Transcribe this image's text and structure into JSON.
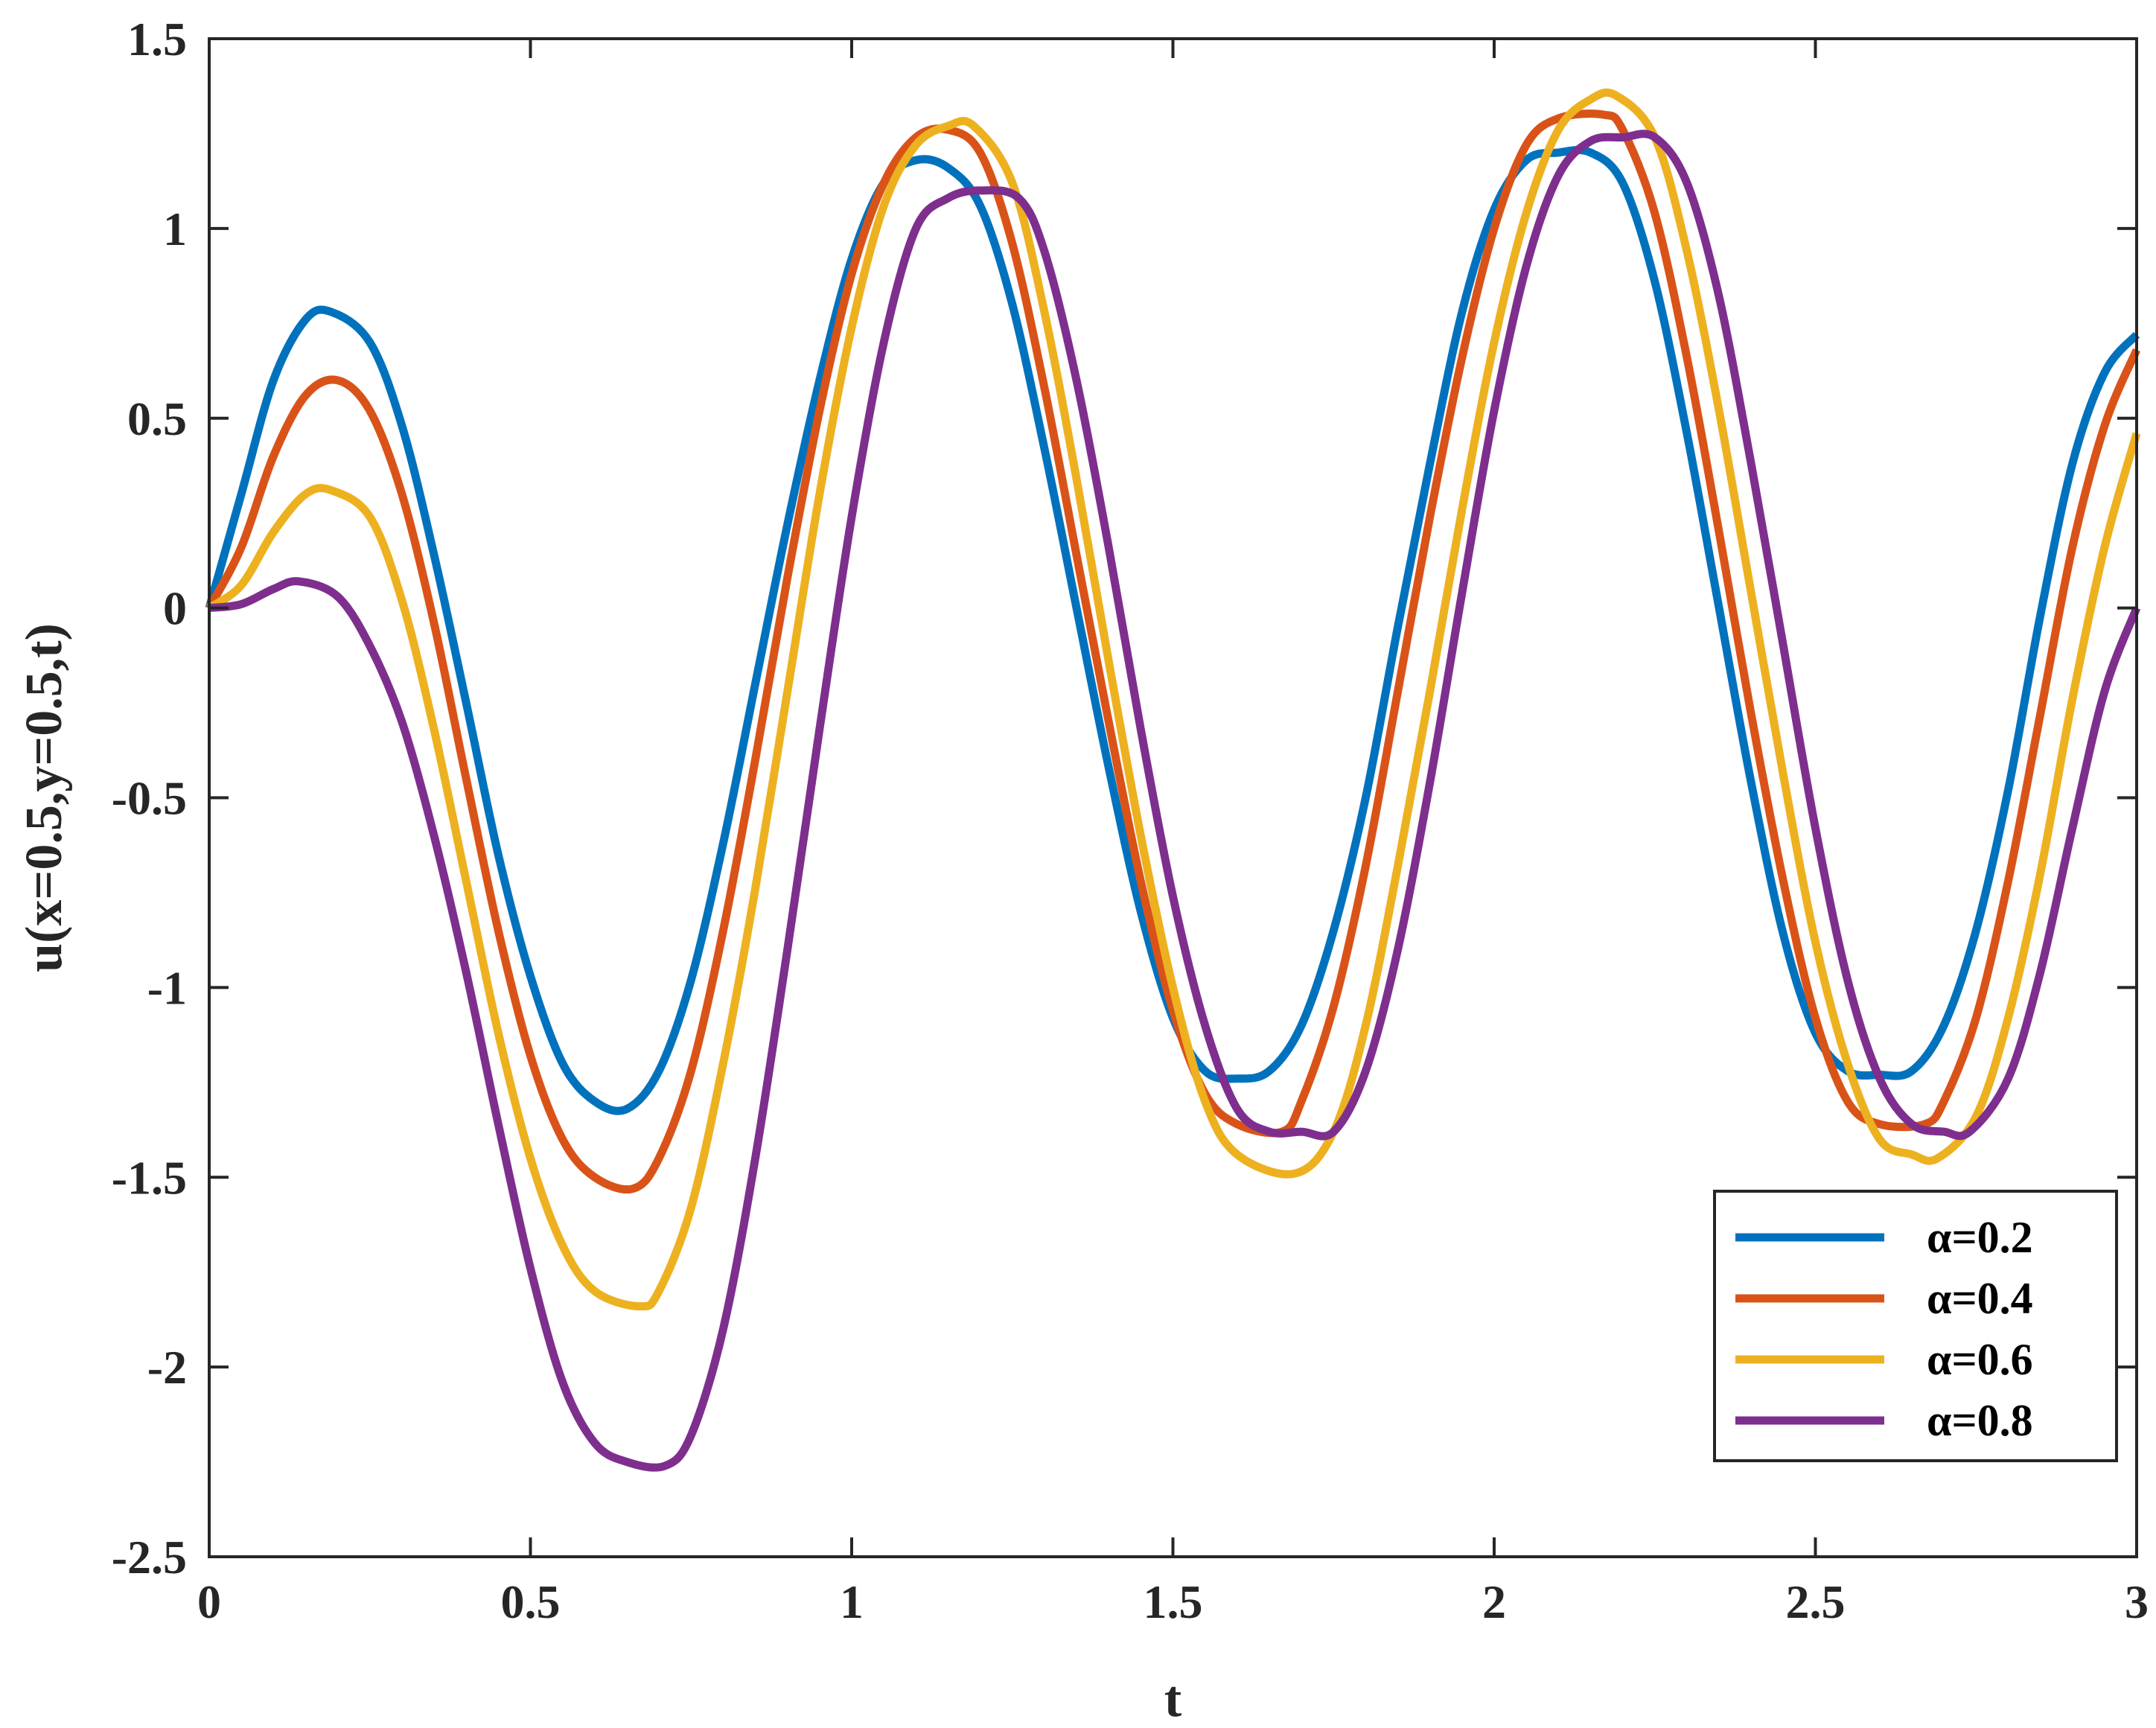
{
  "chart_data": {
    "type": "line",
    "title": "",
    "xlabel": "t",
    "ylabel": "u(x=0.5,y=0.5,t)",
    "xlim": [
      0,
      3
    ],
    "ylim": [
      -2.5,
      1.5
    ],
    "xticks": [
      0,
      0.5,
      1,
      1.5,
      2,
      2.5,
      3
    ],
    "xtick_labels": [
      "0",
      "0.5",
      "1",
      "1.5",
      "2",
      "2.5",
      "3"
    ],
    "yticks": [
      1.5,
      1,
      0.5,
      0,
      -0.5,
      -1,
      -1.5,
      -2,
      -2.5
    ],
    "ytick_labels": [
      "1.5",
      "1",
      "0.5",
      "0",
      "-0.5",
      "-1",
      "-1.5",
      "-2",
      "-2.5"
    ],
    "grid": false,
    "legend_position": "bottom-right",
    "series": [
      {
        "name": "α=0.2",
        "color": "#0072BD",
        "x": [
          0,
          0.05,
          0.1,
          0.15,
          0.19,
          0.25,
          0.3,
          0.35,
          0.4,
          0.45,
          0.5,
          0.55,
          0.6,
          0.65,
          0.7,
          0.75,
          0.8,
          0.85,
          0.9,
          0.95,
          1.0,
          1.05,
          1.1,
          1.15,
          1.2,
          1.25,
          1.3,
          1.35,
          1.4,
          1.45,
          1.5,
          1.55,
          1.6,
          1.65,
          1.7,
          1.75,
          1.8,
          1.85,
          1.9,
          1.95,
          2.0,
          2.05,
          2.1,
          2.15,
          2.2,
          2.25,
          2.3,
          2.35,
          2.4,
          2.45,
          2.5,
          2.55,
          2.6,
          2.65,
          2.7,
          2.75,
          2.8,
          2.85,
          2.9,
          2.95,
          3.0
        ],
        "y": [
          0,
          0.3,
          0.6,
          0.76,
          0.78,
          0.7,
          0.48,
          0.14,
          -0.25,
          -0.65,
          -0.97,
          -1.2,
          -1.3,
          -1.32,
          -1.22,
          -0.98,
          -0.62,
          -0.2,
          0.22,
          0.6,
          0.92,
          1.12,
          1.18,
          1.16,
          1.06,
          0.8,
          0.42,
          0.0,
          -0.42,
          -0.8,
          -1.08,
          -1.22,
          -1.24,
          -1.22,
          -1.1,
          -0.85,
          -0.5,
          -0.05,
          0.38,
          0.78,
          1.05,
          1.18,
          1.2,
          1.2,
          1.12,
          0.86,
          0.46,
          0.0,
          -0.46,
          -0.86,
          -1.12,
          -1.22,
          -1.23,
          -1.22,
          -1.1,
          -0.85,
          -0.48,
          -0.02,
          0.38,
          0.62,
          0.72
        ]
      },
      {
        "name": "α=0.4",
        "color": "#D95319",
        "x": [
          0,
          0.05,
          0.1,
          0.15,
          0.2,
          0.25,
          0.3,
          0.35,
          0.4,
          0.45,
          0.5,
          0.55,
          0.6,
          0.66,
          0.7,
          0.75,
          0.8,
          0.85,
          0.9,
          0.95,
          1.0,
          1.05,
          1.1,
          1.15,
          1.2,
          1.25,
          1.3,
          1.35,
          1.4,
          1.45,
          1.5,
          1.55,
          1.6,
          1.67,
          1.7,
          1.75,
          1.8,
          1.85,
          1.9,
          1.95,
          2.0,
          2.05,
          2.1,
          2.17,
          2.2,
          2.25,
          2.3,
          2.35,
          2.4,
          2.45,
          2.5,
          2.55,
          2.6,
          2.67,
          2.7,
          2.75,
          2.8,
          2.85,
          2.9,
          2.95,
          3.0
        ],
        "y": [
          0,
          0.16,
          0.4,
          0.56,
          0.6,
          0.52,
          0.3,
          -0.04,
          -0.45,
          -0.85,
          -1.18,
          -1.4,
          -1.5,
          -1.53,
          -1.45,
          -1.22,
          -0.85,
          -0.4,
          0.08,
          0.52,
          0.88,
          1.12,
          1.24,
          1.26,
          1.2,
          0.96,
          0.58,
          0.14,
          -0.3,
          -0.72,
          -1.06,
          -1.28,
          -1.36,
          -1.38,
          -1.3,
          -1.05,
          -0.68,
          -0.22,
          0.24,
          0.66,
          1.0,
          1.22,
          1.29,
          1.3,
          1.26,
          1.04,
          0.66,
          0.2,
          -0.28,
          -0.72,
          -1.08,
          -1.3,
          -1.36,
          -1.36,
          -1.3,
          -1.08,
          -0.72,
          -0.28,
          0.16,
          0.48,
          0.68
        ]
      },
      {
        "name": "α=0.6",
        "color": "#EDB120",
        "x": [
          0,
          0.05,
          0.1,
          0.15,
          0.19,
          0.25,
          0.3,
          0.35,
          0.4,
          0.45,
          0.5,
          0.55,
          0.6,
          0.67,
          0.7,
          0.75,
          0.8,
          0.85,
          0.9,
          0.95,
          1.0,
          1.05,
          1.1,
          1.15,
          1.19,
          1.25,
          1.3,
          1.35,
          1.4,
          1.45,
          1.5,
          1.55,
          1.6,
          1.69,
          1.75,
          1.8,
          1.85,
          1.9,
          1.95,
          2.0,
          2.05,
          2.1,
          2.15,
          2.19,
          2.25,
          2.3,
          2.35,
          2.4,
          2.45,
          2.5,
          2.55,
          2.6,
          2.65,
          2.69,
          2.75,
          2.8,
          2.85,
          2.9,
          2.95,
          3.0
        ],
        "y": [
          0,
          0.06,
          0.2,
          0.3,
          0.31,
          0.24,
          0.02,
          -0.32,
          -0.72,
          -1.12,
          -1.45,
          -1.68,
          -1.8,
          -1.84,
          -1.8,
          -1.58,
          -1.2,
          -0.74,
          -0.22,
          0.3,
          0.74,
          1.06,
          1.22,
          1.27,
          1.27,
          1.12,
          0.78,
          0.34,
          -0.14,
          -0.6,
          -1.0,
          -1.3,
          -1.44,
          -1.49,
          -1.38,
          -1.1,
          -0.68,
          -0.22,
          0.26,
          0.7,
          1.04,
          1.26,
          1.34,
          1.35,
          1.24,
          0.94,
          0.52,
          0.04,
          -0.44,
          -0.88,
          -1.2,
          -1.4,
          -1.44,
          -1.45,
          -1.34,
          -1.08,
          -0.7,
          -0.24,
          0.16,
          0.46
        ]
      },
      {
        "name": "α=0.8",
        "color": "#7E2F8E",
        "x": [
          0,
          0.05,
          0.1,
          0.14,
          0.2,
          0.25,
          0.3,
          0.35,
          0.4,
          0.45,
          0.5,
          0.55,
          0.6,
          0.65,
          0.71,
          0.75,
          0.8,
          0.85,
          0.9,
          0.95,
          1.0,
          1.05,
          1.1,
          1.15,
          1.2,
          1.26,
          1.3,
          1.35,
          1.4,
          1.45,
          1.5,
          1.55,
          1.6,
          1.65,
          1.7,
          1.75,
          1.8,
          1.85,
          1.9,
          1.95,
          2.0,
          2.05,
          2.1,
          2.15,
          2.2,
          2.25,
          2.3,
          2.35,
          2.4,
          2.45,
          2.5,
          2.55,
          2.6,
          2.65,
          2.7,
          2.74,
          2.8,
          2.85,
          2.9,
          2.95,
          3.0
        ],
        "y": [
          0,
          0.01,
          0.05,
          0.07,
          0.03,
          -0.1,
          -0.3,
          -0.6,
          -0.96,
          -1.36,
          -1.74,
          -2.04,
          -2.2,
          -2.25,
          -2.26,
          -2.18,
          -1.9,
          -1.45,
          -0.9,
          -0.32,
          0.24,
          0.7,
          1.0,
          1.08,
          1.1,
          1.08,
          0.94,
          0.6,
          0.16,
          -0.32,
          -0.76,
          -1.1,
          -1.32,
          -1.38,
          -1.38,
          -1.38,
          -1.22,
          -0.9,
          -0.46,
          0.04,
          0.52,
          0.9,
          1.14,
          1.23,
          1.24,
          1.24,
          1.12,
          0.82,
          0.38,
          -0.1,
          -0.58,
          -0.98,
          -1.24,
          -1.36,
          -1.38,
          -1.38,
          -1.24,
          -0.96,
          -0.58,
          -0.22,
          0.0
        ]
      }
    ]
  }
}
